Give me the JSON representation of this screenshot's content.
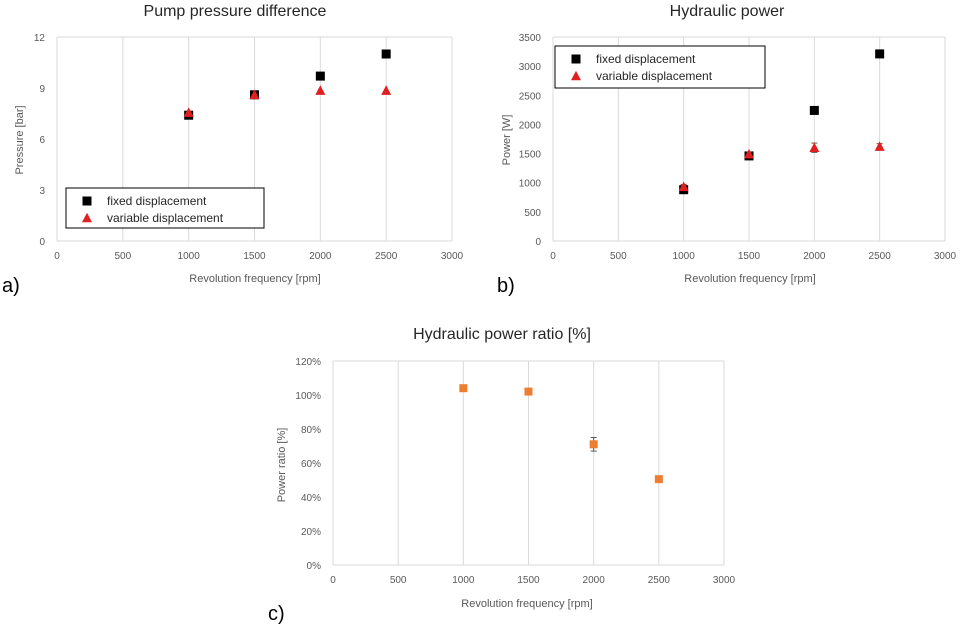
{
  "colors": {
    "fixed": "#000000",
    "variable": "#e02020",
    "ratio": "#ed7d31",
    "grid": "#d9d9d9",
    "errorbar": "#595959"
  },
  "chart_data": [
    {
      "type": "scatter",
      "panel_label": "a)",
      "title": "Pump pressure difference",
      "xlabel": "Revolution frequency [rpm]",
      "ylabel": "Pressure [bar]",
      "xlim": [
        0,
        3000
      ],
      "ylim": [
        0,
        12
      ],
      "xticks": [
        "0",
        "500",
        "1000",
        "1500",
        "2000",
        "2500",
        "3000"
      ],
      "yticks": [
        "0",
        "3",
        "6",
        "9",
        "12"
      ],
      "grid": "vertical",
      "legend_position": "bottom-left",
      "series": [
        {
          "name": "fixed displacement",
          "marker": "square",
          "x": [
            1000,
            1500,
            2000,
            2500
          ],
          "y": [
            7.4,
            8.6,
            9.7,
            11.0
          ]
        },
        {
          "name": "variable displacement",
          "marker": "triangle",
          "x": [
            1000,
            1500,
            2000,
            2500
          ],
          "y": [
            7.55,
            8.6,
            8.85,
            8.85
          ]
        }
      ]
    },
    {
      "type": "scatter",
      "panel_label": "b)",
      "title": "Hydraulic power",
      "xlabel": "Revolution frequency [rpm]",
      "ylabel": "Power [W]",
      "xlim": [
        0,
        3000
      ],
      "ylim": [
        0,
        3500
      ],
      "xticks": [
        "0",
        "500",
        "1000",
        "1500",
        "2000",
        "2500",
        "3000"
      ],
      "yticks": [
        "0",
        "500",
        "1000",
        "1500",
        "2000",
        "2500",
        "3000",
        "3500"
      ],
      "grid": "vertical",
      "legend_position": "top-left",
      "series": [
        {
          "name": "fixed displacement",
          "marker": "square",
          "x": [
            1000,
            1500,
            2000,
            2500
          ],
          "y": [
            880,
            1460,
            2240,
            3210
          ]
        },
        {
          "name": "variable displacement",
          "marker": "triangle",
          "x": [
            1000,
            1500,
            2000,
            2500
          ],
          "y": [
            930,
            1490,
            1600,
            1620
          ],
          "error": [
            40,
            40,
            80,
            50
          ]
        }
      ]
    },
    {
      "type": "scatter",
      "panel_label": "c)",
      "title": "Hydraulic power ratio [%]",
      "xlabel": "Revolution frequency [rpm]",
      "ylabel": "Power ratio [%]",
      "xlim": [
        0,
        3000
      ],
      "ylim": [
        0,
        120
      ],
      "xticks": [
        "0",
        "500",
        "1000",
        "1500",
        "2000",
        "2500",
        "3000"
      ],
      "yticks": [
        "0%",
        "20%",
        "40%",
        "60%",
        "80%",
        "100%",
        "120%"
      ],
      "grid": "vertical",
      "series": [
        {
          "marker": "square",
          "x": [
            1000,
            1500,
            2000,
            2500
          ],
          "y": [
            104,
            102,
            71,
            50.5
          ],
          "error": [
            0,
            0,
            4,
            0
          ]
        }
      ]
    }
  ]
}
